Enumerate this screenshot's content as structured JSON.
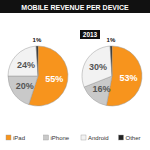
{
  "chart_data": [
    {
      "type": "pie",
      "title": "MOBILE REVENUE PER DEVICE",
      "categories": [
        "iPad",
        "iPhone",
        "Android",
        "Other"
      ],
      "values": [
        55,
        20,
        24,
        1
      ],
      "value_labels": [
        "55%",
        "20%",
        "24%",
        "1%"
      ],
      "colors": [
        "#f7941d",
        "#c9c9c9",
        "#f2f2f2",
        "#222222"
      ],
      "data_labels": true,
      "legend": "bottom"
    },
    {
      "type": "pie",
      "title": "2013",
      "values": [
        53,
        16,
        30,
        1
      ],
      "value_labels": [
        "53%",
        "16%",
        "30%",
        "1%"
      ],
      "colors": [
        "#f7941d",
        "#c9c9c9",
        "#f2f2f2",
        "#222222"
      ],
      "data_labels": true
    }
  ]
}
